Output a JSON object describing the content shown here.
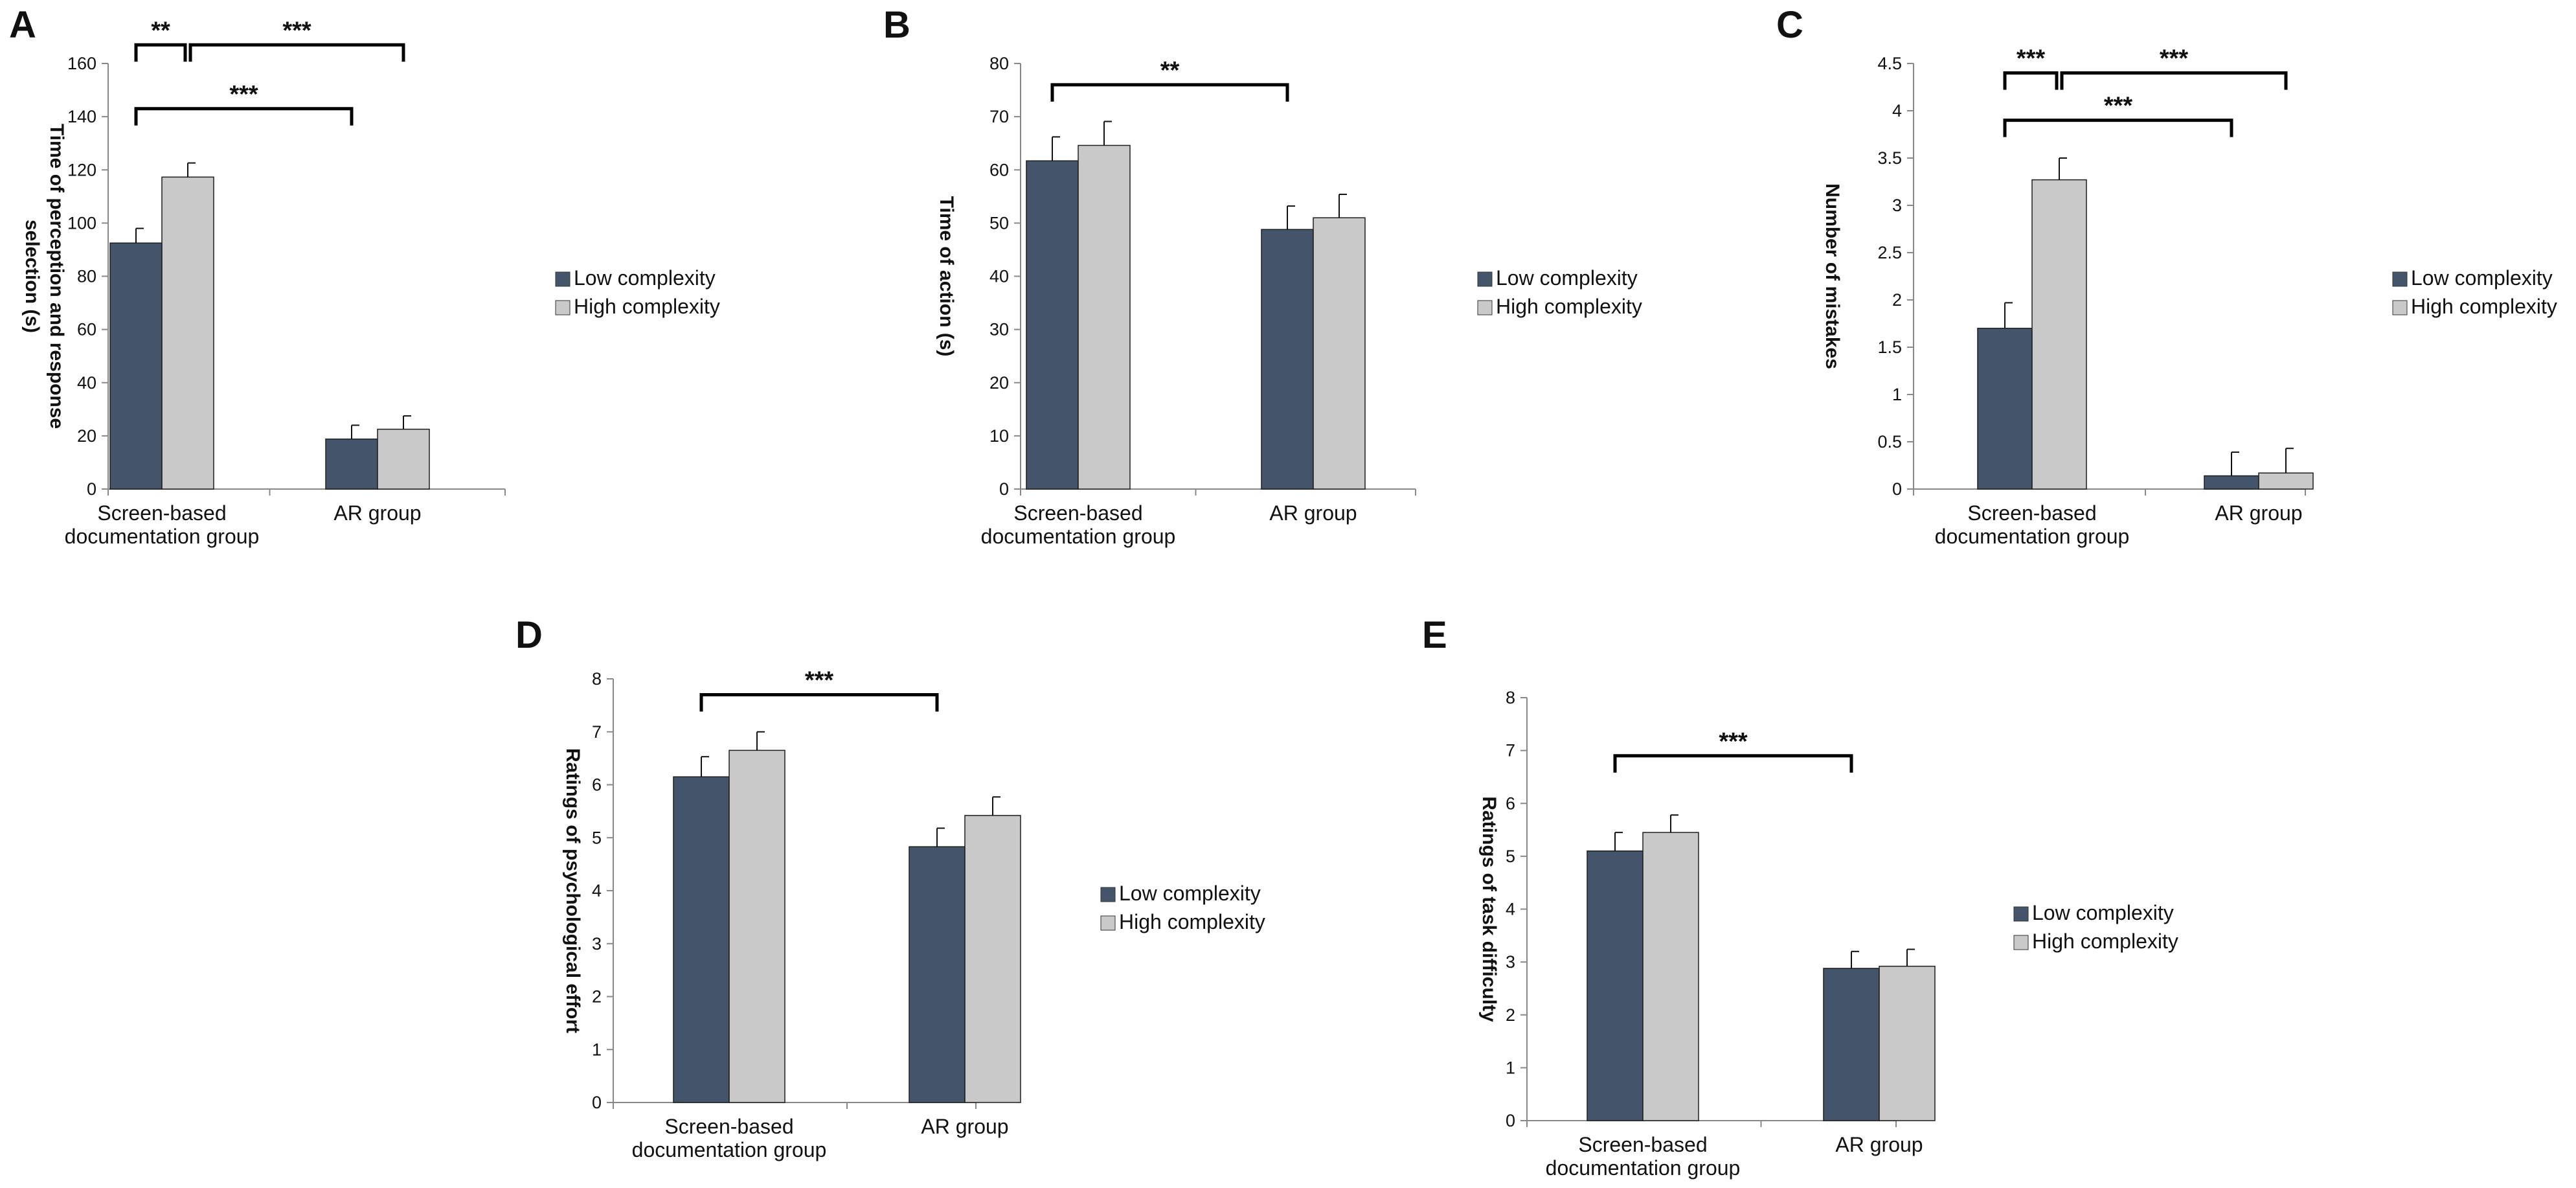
{
  "figure": {
    "colors": {
      "low": "#44546A",
      "high": "#C9C9C9",
      "axis": "#888888",
      "text": "#111111"
    },
    "legend": [
      "Low complexity",
      "High complexity"
    ]
  },
  "chart_data": [
    {
      "panel": "A",
      "type": "bar",
      "ylabel": [
        "Time of perception and response",
        "selection (s)"
      ],
      "ylim": [
        0,
        160
      ],
      "yticks": [
        0,
        20,
        40,
        60,
        80,
        100,
        120,
        140,
        160
      ],
      "categories": [
        [
          "Screen-based",
          "documentation group"
        ],
        [
          "AR group"
        ]
      ],
      "series": [
        {
          "name": "Low complexity",
          "values": [
            92.5,
            18.8
          ],
          "errors": [
            5.5,
            5.2
          ]
        },
        {
          "name": "High complexity",
          "values": [
            117.3,
            22.5
          ],
          "errors": [
            5.3,
            5.0
          ]
        }
      ],
      "significance": [
        {
          "from": [
            0,
            0
          ],
          "to": [
            0,
            1
          ],
          "label": "**",
          "level": 167
        },
        {
          "from": [
            0,
            1
          ],
          "to": [
            1,
            1
          ],
          "label": "***",
          "level": 167
        },
        {
          "from": [
            0,
            0
          ],
          "to": [
            1,
            0
          ],
          "label": "***",
          "level": 143
        }
      ]
    },
    {
      "panel": "B",
      "type": "bar",
      "ylabel": [
        "Time of action (s)"
      ],
      "ylim": [
        0,
        80
      ],
      "yticks": [
        0,
        10,
        20,
        30,
        40,
        50,
        60,
        70,
        80
      ],
      "categories": [
        [
          "Screen-based",
          "documentation group"
        ],
        [
          "AR group"
        ]
      ],
      "series": [
        {
          "name": "Low complexity",
          "values": [
            61.7,
            48.8
          ],
          "errors": [
            4.5,
            4.4
          ]
        },
        {
          "name": "High complexity",
          "values": [
            64.6,
            51.0
          ],
          "errors": [
            4.5,
            4.4
          ]
        }
      ],
      "significance": [
        {
          "from": [
            0,
            0
          ],
          "to": [
            1,
            0
          ],
          "label": "**",
          "level": 76
        }
      ]
    },
    {
      "panel": "C",
      "type": "bar",
      "ylabel": [
        "Number of mistakes"
      ],
      "ylim": [
        0,
        4.5
      ],
      "yticks": [
        0,
        0.5,
        1,
        1.5,
        2,
        2.5,
        3,
        3.5,
        4,
        4.5
      ],
      "categories": [
        [
          "Screen-based",
          "documentation group"
        ],
        [
          "AR group"
        ]
      ],
      "series": [
        {
          "name": "Low complexity",
          "values": [
            1.7,
            0.14
          ],
          "errors": [
            0.27,
            0.25
          ]
        },
        {
          "name": "High complexity",
          "values": [
            3.27,
            0.17
          ],
          "errors": [
            0.23,
            0.26
          ]
        }
      ],
      "significance": [
        {
          "from": [
            0,
            0
          ],
          "to": [
            0,
            1
          ],
          "label": "***",
          "level": 4.4
        },
        {
          "from": [
            0,
            1
          ],
          "to": [
            1,
            1
          ],
          "label": "***",
          "level": 4.4
        },
        {
          "from": [
            0,
            0
          ],
          "to": [
            1,
            0
          ],
          "label": "***",
          "level": 3.9
        }
      ]
    },
    {
      "panel": "D",
      "type": "bar",
      "ylabel": [
        "Ratings of psychological effort"
      ],
      "ylim": [
        0,
        8
      ],
      "yticks": [
        0,
        1,
        2,
        3,
        4,
        5,
        6,
        7,
        8
      ],
      "categories": [
        [
          "Screen-based",
          "documentation group"
        ],
        [
          "AR group"
        ]
      ],
      "series": [
        {
          "name": "Low complexity",
          "values": [
            6.15,
            4.83
          ],
          "errors": [
            0.38,
            0.35
          ]
        },
        {
          "name": "High complexity",
          "values": [
            6.65,
            5.42
          ],
          "errors": [
            0.35,
            0.35
          ]
        }
      ],
      "significance": [
        {
          "from": [
            0,
            0
          ],
          "to": [
            1,
            0
          ],
          "label": "***",
          "level": 7.7
        }
      ]
    },
    {
      "panel": "E",
      "type": "bar",
      "ylabel": [
        "Ratings of task difficulty"
      ],
      "ylim": [
        0,
        8
      ],
      "yticks": [
        0,
        1,
        2,
        3,
        4,
        5,
        6,
        7,
        8
      ],
      "categories": [
        [
          "Screen-based",
          "documentation group"
        ],
        [
          "AR group"
        ]
      ],
      "series": [
        {
          "name": "Low complexity",
          "values": [
            5.1,
            2.88
          ],
          "errors": [
            0.35,
            0.32
          ]
        },
        {
          "name": "High complexity",
          "values": [
            5.45,
            2.92
          ],
          "errors": [
            0.33,
            0.32
          ]
        }
      ],
      "significance": [
        {
          "from": [
            0,
            0
          ],
          "to": [
            1,
            0
          ],
          "label": "***",
          "level": 6.9
        }
      ]
    }
  ]
}
